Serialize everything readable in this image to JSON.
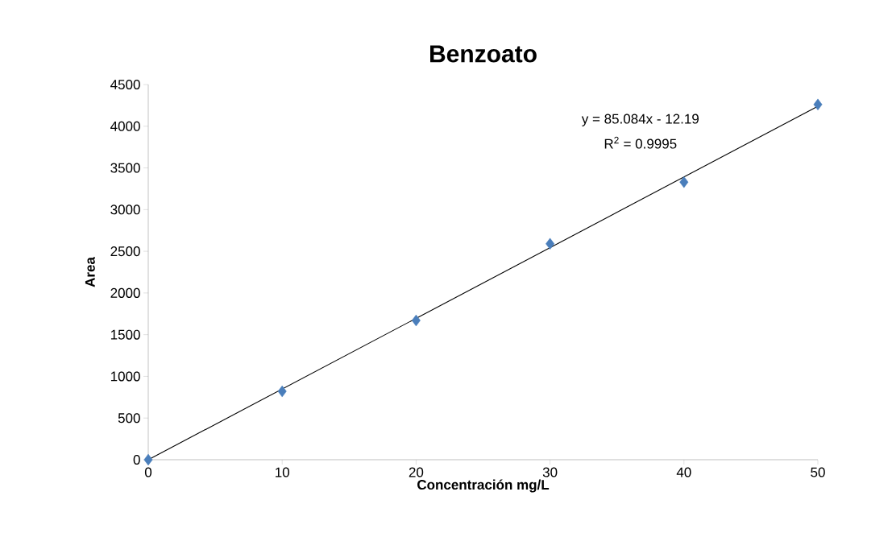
{
  "chart_data": {
    "type": "scatter",
    "title": "Benzoato",
    "xlabel": "Concentración mg/L",
    "ylabel": "Area",
    "x": [
      0,
      10,
      20,
      30,
      40,
      50
    ],
    "xlim": [
      0,
      50
    ],
    "xticks": [
      0,
      10,
      20,
      30,
      40,
      50
    ],
    "ylim": [
      0,
      4500
    ],
    "yticks": [
      0,
      500,
      1000,
      1500,
      2000,
      2500,
      3000,
      3500,
      4000,
      4500
    ],
    "grid": false,
    "marker": "diamond",
    "series": [
      {
        "color": "#4a7ebb",
        "values": [
          0,
          820,
          1670,
          2590,
          3330,
          4260
        ]
      },
      {
        "type": "line",
        "color": "#000000",
        "x": [
          0,
          50
        ],
        "values": [
          0,
          4240
        ],
        "marker": "none",
        "line_style": "solid"
      }
    ],
    "annotations": [
      "y = 85.084x - 12.19",
      "R$^{2}$ = 0.9995"
    ]
  }
}
